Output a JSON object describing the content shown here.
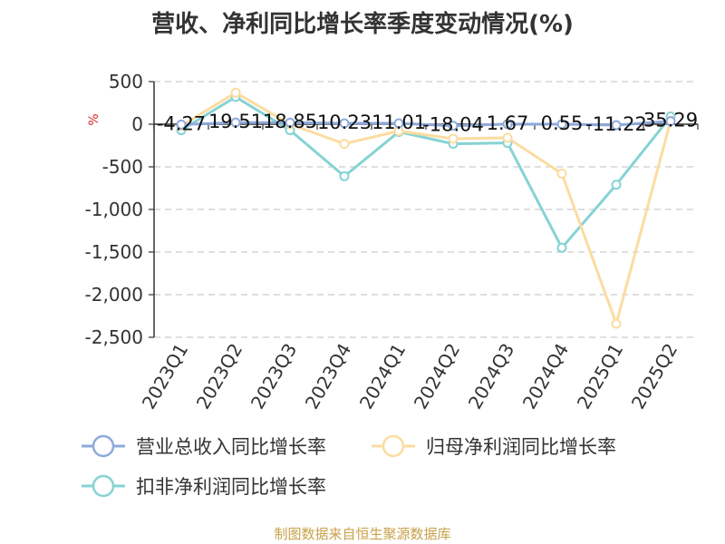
{
  "title": "营收、净利同比增长率季度变动情况(%)",
  "source": "制图数据来自恒生聚源数据库",
  "chart_data": {
    "type": "line",
    "title": "营收、净利同比增长率季度变动情况(%)",
    "ylabel": "%",
    "ylim": [
      -2500,
      500
    ],
    "yticks": [
      500,
      0,
      -500,
      -1000,
      -1500,
      -2000,
      -2500
    ],
    "ytick_labels": [
      "500",
      "0",
      "-500",
      "-1,000",
      "-1,500",
      "-2,000",
      "-2,500"
    ],
    "categories": [
      "2023Q1",
      "2023Q2",
      "2023Q3",
      "2023Q4",
      "2024Q1",
      "2024Q2",
      "2024Q3",
      "2024Q4",
      "2025Q1",
      "2025Q2"
    ],
    "grid": true,
    "legend_position": "bottom",
    "series": [
      {
        "name": "营业总收入同比增长率",
        "color": "#8eaadb",
        "values": [
          -4.27,
          19.51,
          18.85,
          10.23,
          11.01,
          -18.04,
          1.67,
          0.55,
          -11.22,
          35.29
        ]
      },
      {
        "name": "归母净利润同比增长率",
        "color": "#fbdca0",
        "values": [
          -20,
          370,
          0,
          -230,
          -80,
          -170,
          -160,
          -580,
          -2340,
          40
        ]
      },
      {
        "name": "扣非净利润同比增长率",
        "color": "#86d3d4",
        "values": [
          -70,
          320,
          -70,
          -610,
          -90,
          -230,
          -220,
          -1450,
          -710,
          90
        ]
      }
    ],
    "data_labels": [
      "-4.27",
      "19.51",
      "18.85",
      "10.23",
      "11.01",
      "-18.04",
      "1.67",
      "0.55",
      "-11.22",
      "35.29"
    ]
  }
}
